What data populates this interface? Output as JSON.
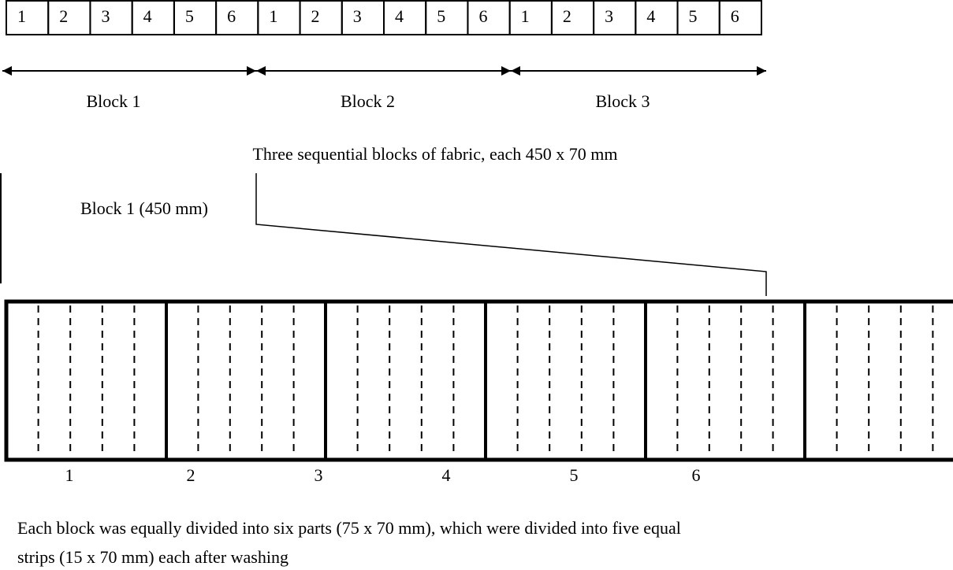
{
  "top_row": {
    "cells": [
      "1",
      "2",
      "3",
      "4",
      "5",
      "6",
      "1",
      "2",
      "3",
      "4",
      "5",
      "6",
      "1",
      "2",
      "3",
      "4",
      "5",
      "6"
    ]
  },
  "blocks": [
    {
      "label": "Block 1"
    },
    {
      "label": "Block 2"
    },
    {
      "label": "Block 3"
    }
  ],
  "caption": "Three sequential blocks of fabric, each 450 x 70 mm",
  "detail_label": "Block 1 (450 mm)",
  "part_labels": [
    "1",
    "2",
    "3",
    "4",
    "5",
    "6"
  ],
  "note": {
    "lines": [
      "Each block was equally divided into six parts (75 x 70 mm), which were divided into five equal",
      "strips (15 x 70 mm) each after washing"
    ]
  }
}
